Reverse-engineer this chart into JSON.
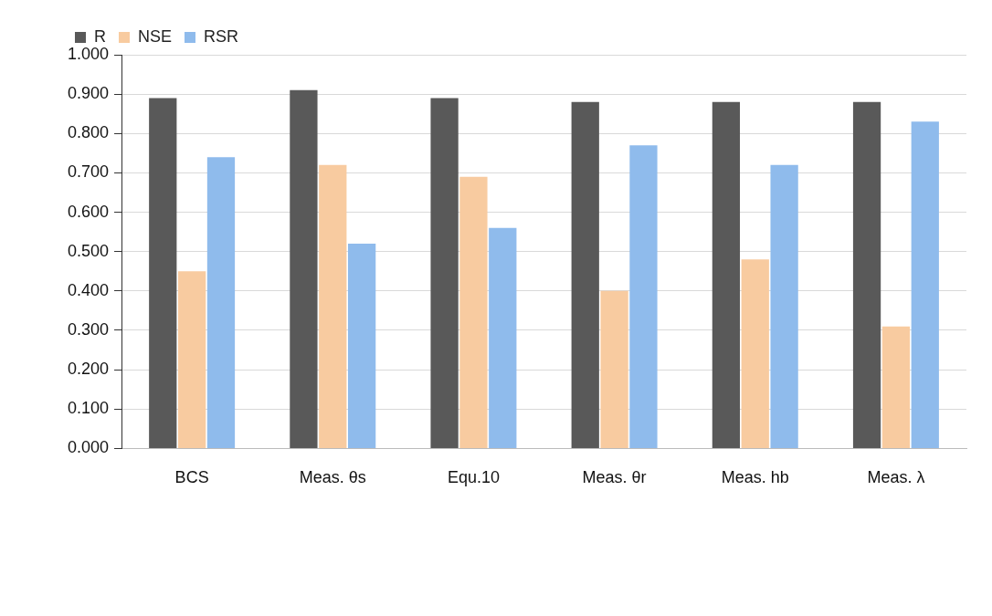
{
  "chart_data": {
    "type": "bar",
    "categories": [
      "BCS",
      "Meas. θs",
      "Equ.10",
      "Meas. θr",
      "Meas. hb",
      "Meas. λ"
    ],
    "series": [
      {
        "name": "R",
        "color": "#595959",
        "values": [
          0.89,
          0.91,
          0.89,
          0.88,
          0.88,
          0.88
        ]
      },
      {
        "name": "NSE",
        "color": "#f8cba0",
        "values": [
          0.45,
          0.72,
          0.69,
          0.4,
          0.48,
          0.31
        ]
      },
      {
        "name": "RSR",
        "color": "#8fbbec",
        "values": [
          0.74,
          0.52,
          0.56,
          0.77,
          0.72,
          0.83
        ]
      }
    ],
    "ylim": [
      0,
      1
    ],
    "yticks": [
      {
        "value": 0,
        "label": "0.000"
      },
      {
        "value": 0.1,
        "label": "0.100"
      },
      {
        "value": 0.2,
        "label": "0.200"
      },
      {
        "value": 0.3,
        "label": "0.300"
      },
      {
        "value": 0.4,
        "label": "0.400"
      },
      {
        "value": 0.5,
        "label": "0.500"
      },
      {
        "value": 0.6,
        "label": "0.600"
      },
      {
        "value": 0.7,
        "label": "0.700"
      },
      {
        "value": 0.8,
        "label": "0.800"
      },
      {
        "value": 0.9,
        "label": "0.900"
      },
      {
        "value": 1,
        "label": "1.000"
      }
    ],
    "grid": "y",
    "legend": "top left"
  }
}
